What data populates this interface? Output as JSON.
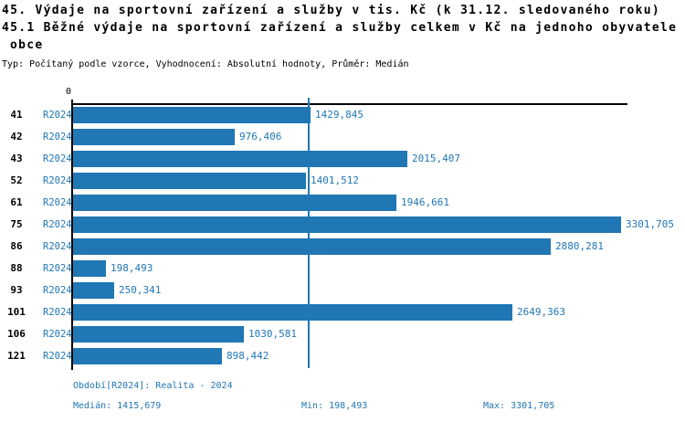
{
  "header": {
    "title_line1": "45. Výdaje na sportovní zařízení a služby v tis. Kč (k 31.12. sledovaného roku)",
    "title_line2": "45.1 Běžné výdaje na sportovní zařízení a služby celkem v Kč na jednoho obyvatele",
    "title_line3": "obce",
    "subtitle": "Typ: Počítaný podle vzorce, Vyhodnocení: Absolutní hodnoty, Průměr: Medián"
  },
  "chart_data": {
    "type": "bar",
    "orientation": "horizontal",
    "categories": [
      "41",
      "42",
      "43",
      "52",
      "61",
      "75",
      "86",
      "88",
      "93",
      "101",
      "106",
      "121"
    ],
    "series_label": "R2024",
    "values": [
      1429.845,
      976.406,
      2015.407,
      1401.512,
      1946.661,
      3301.705,
      2880.281,
      198.493,
      250.341,
      2649.363,
      1030.581,
      898.442
    ],
    "value_labels": [
      "1429,845",
      "976,406",
      "2015,407",
      "1401,512",
      "1946,661",
      "3301,705",
      "2880,281",
      "198,493",
      "250,341",
      "2649,363",
      "1030,581",
      "898,442"
    ],
    "axis_origin_label": "0",
    "xlim": [
      0,
      3301.705
    ],
    "median": 1415.679,
    "grid": false,
    "legend": "none",
    "bar_color": "#2077b4",
    "median_line_color": "#2077b4",
    "accent_text_color": "#2077b4"
  },
  "footer": {
    "period": "Období[R2024]: Realita - 2024",
    "median": "Medián: 1415,679",
    "min": "Min: 198,493",
    "max": "Max: 3301,705"
  }
}
